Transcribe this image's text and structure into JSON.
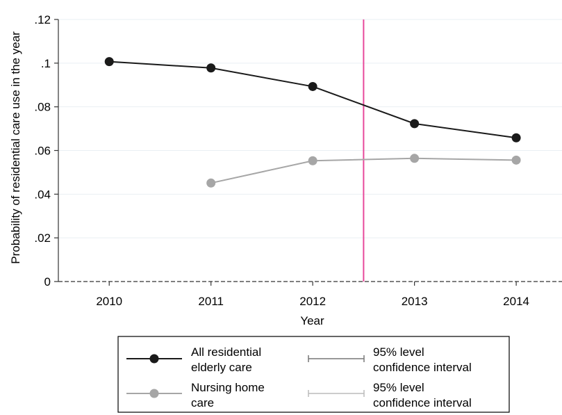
{
  "chart_data": {
    "type": "line",
    "title": "",
    "xlabel": "Year",
    "ylabel": "Probability of residential care use in the year",
    "x": [
      2010,
      2011,
      2012,
      2013,
      2014
    ],
    "x_tick_labels": [
      "2010",
      "2011",
      "2012",
      "2013",
      "2014"
    ],
    "xlim": [
      2009.5,
      2014.45
    ],
    "ylim": [
      0,
      0.12
    ],
    "y_ticks": [
      0,
      0.02,
      0.04,
      0.06,
      0.08,
      0.1,
      0.12
    ],
    "y_tick_labels": [
      "0",
      ".02",
      ".04",
      ".06",
      ".08",
      ".1",
      ".12"
    ],
    "grid": true,
    "reference_line": {
      "x": 2012.5,
      "color": "#e8489a"
    },
    "series": [
      {
        "name": "All residential elderly care",
        "color": "#1a1a1a",
        "x": [
          2010,
          2011,
          2012,
          2013,
          2014
        ],
        "values": [
          0.1007,
          0.0978,
          0.0893,
          0.0723,
          0.0658
        ]
      },
      {
        "name": "Nursing home care",
        "color": "#a6a6a6",
        "x": [
          2011,
          2012,
          2013,
          2014
        ],
        "values": [
          0.0451,
          0.0553,
          0.0564,
          0.0556
        ]
      }
    ],
    "legend": {
      "placement": "bottom",
      "entries": [
        {
          "label_lines": [
            "All residential",
            "elderly care"
          ],
          "style": "line-marker",
          "color": "#1a1a1a"
        },
        {
          "label_lines": [
            "95% level",
            "confidence interval"
          ],
          "style": "capped-line",
          "color": "#777777"
        },
        {
          "label_lines": [
            "Nursing home",
            "care"
          ],
          "style": "line-marker",
          "color": "#a6a6a6"
        },
        {
          "label_lines": [
            "95% level",
            "confidence interval"
          ],
          "style": "capped-line",
          "color": "#bbbbbb"
        }
      ]
    }
  }
}
